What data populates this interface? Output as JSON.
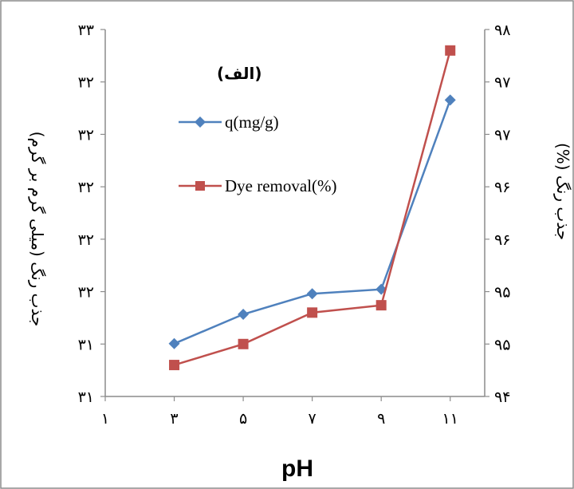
{
  "chart_data": {
    "type": "line",
    "panel_label": "(الف)",
    "x": [
      3,
      5,
      7,
      9,
      11
    ],
    "x_ticks": [
      "۱",
      "۳",
      "۵",
      "۷",
      "۹",
      "۱۱"
    ],
    "x_tick_values": [
      1,
      3,
      5,
      7,
      9,
      11
    ],
    "xlim": [
      1,
      12
    ],
    "xlabel": "pH",
    "ylabel_left": "جذب رنگ (میلی گرم بر گرم)",
    "ylabel_right": "جذب رنگ (%)",
    "ylim_left": [
      30.5,
      33.0
    ],
    "y_ticks_left": [
      "۳۱",
      "۳۱",
      "۳۲",
      "۳۲",
      "۳۲",
      "۳۲",
      "۳۲",
      "۳۳"
    ],
    "ylim_right": [
      94.0,
      97.5
    ],
    "y_ticks_right": [
      "۹۴",
      "۹۵",
      "۹۵",
      "۹۶",
      "۹۶",
      "۹۷",
      "۹۷",
      "۹۸"
    ],
    "series": [
      {
        "name": "q(mg/g)",
        "axis": "left",
        "color": "#4f81bd",
        "marker": "diamond",
        "values": [
          30.86,
          31.06,
          31.2,
          31.23,
          32.52
        ]
      },
      {
        "name": "Dye removal(%)",
        "axis": "right",
        "color": "#c0504d",
        "marker": "square",
        "values": [
          94.3,
          94.5,
          94.8,
          94.87,
          97.3
        ]
      }
    ],
    "legend_position": "upper-left inside plot",
    "grid": false
  }
}
